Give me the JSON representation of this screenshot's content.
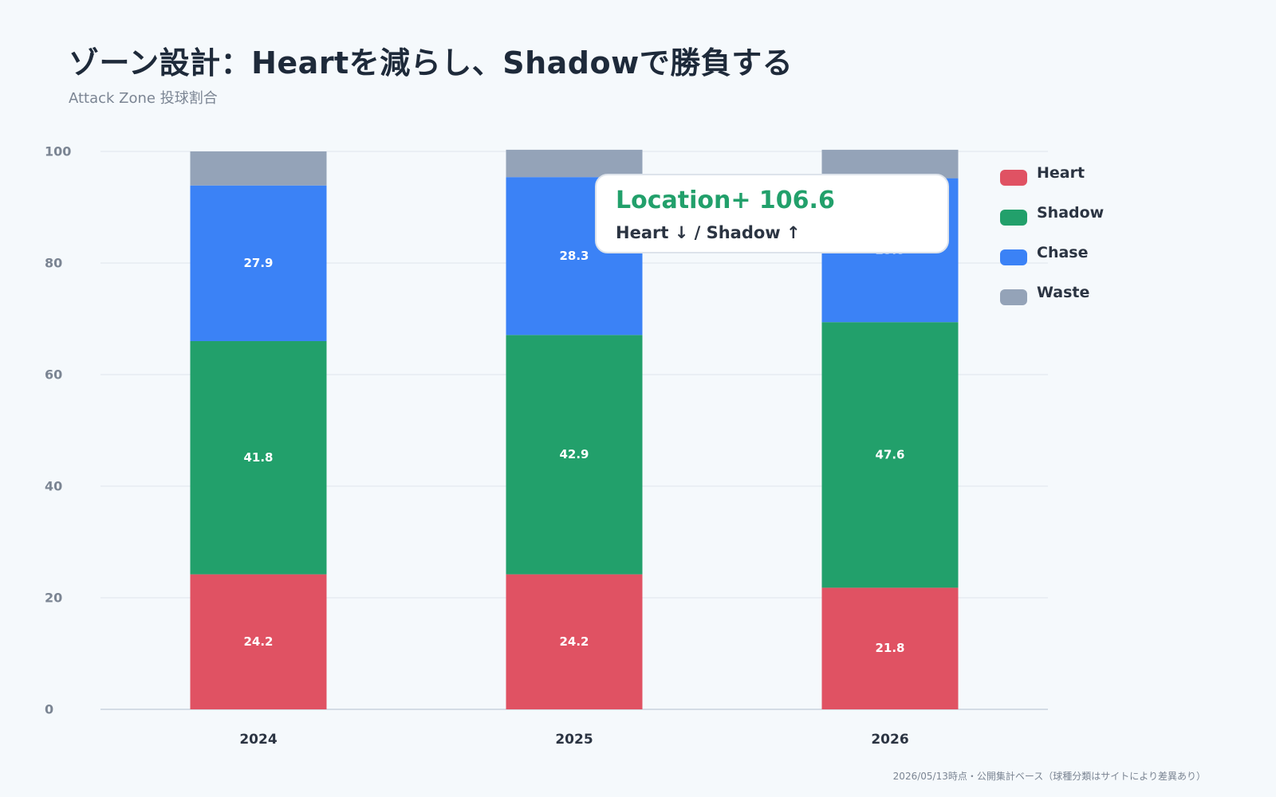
{
  "header": {
    "title": "ゾーン設計：Heartを減らし、Shadowで勝負する",
    "subtitle": "Attack Zone 投球割合"
  },
  "callout": {
    "headline": "Location+ 106.6",
    "subline": "Heart ↓ / Shadow ↑"
  },
  "footnote": "2026/05/13時点・公開集計ベース（球種分類はサイトにより差異あり）",
  "chart_data": {
    "type": "bar",
    "stacked": true,
    "categories": [
      "2024",
      "2025",
      "2026"
    ],
    "series": [
      {
        "name": "Heart",
        "color": "#e05263",
        "values": [
          24.2,
          24.2,
          21.8
        ]
      },
      {
        "name": "Shadow",
        "color": "#22a06b",
        "values": [
          41.8,
          42.9,
          47.6
        ]
      },
      {
        "name": "Chase",
        "color": "#3b82f6",
        "values": [
          27.9,
          28.3,
          25.8
        ]
      },
      {
        "name": "Waste",
        "color": "#94a3b8",
        "values": [
          6.1,
          4.9,
          5.1
        ]
      }
    ],
    "ylim": [
      0,
      100
    ],
    "yticks": [
      0,
      20,
      40,
      60,
      80,
      100
    ],
    "grid": true,
    "legend_position": "right"
  }
}
